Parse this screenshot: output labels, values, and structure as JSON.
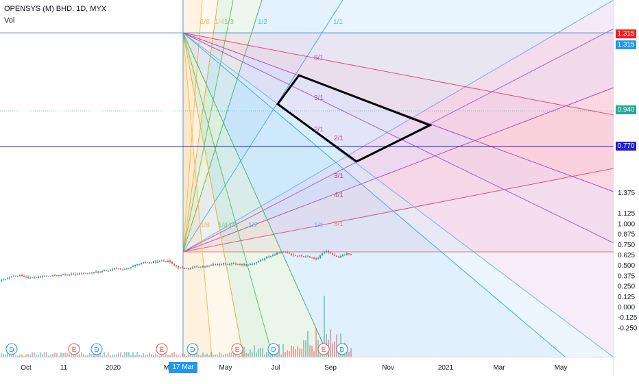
{
  "header": {
    "symbol_line": "OPENSYS (M) BHD, 1D, MYX",
    "indicator": "Vol"
  },
  "price_axis": {
    "ticks": [
      "1.375",
      "1.125",
      "1.000",
      "0.875",
      "0.750",
      "0.625",
      "0.500",
      "0.375",
      "0.250",
      "0.125",
      "0.000",
      "-0.125",
      "-0.250"
    ],
    "tick_values": [
      1.375,
      1.125,
      1.0,
      0.875,
      0.75,
      0.625,
      0.5,
      0.375,
      0.25,
      0.125,
      0.0,
      -0.125,
      -0.25
    ]
  },
  "price_labels": [
    {
      "text": "1.315",
      "color": "#ff1a1a",
      "value": 1.315
    },
    {
      "text": "1.315",
      "color": "#2196f3",
      "value": 1.315
    },
    {
      "text": "0.940",
      "color": "#26a69a",
      "value": 0.94
    },
    {
      "text": "0.770",
      "color": "#1f1fcc",
      "value": 0.77
    }
  ],
  "time_axis": {
    "labels": [
      "Oct",
      "11",
      "2020",
      "M",
      "May",
      "Jul",
      "Sep",
      "Nov",
      "2021",
      "Mar",
      "May"
    ],
    "selected_date": "17 Mar '20"
  },
  "gann_fan_upper": [
    "1/8",
    "1/4",
    "1/3",
    "1/2",
    "1/1"
  ],
  "gann_fan_upper_right": [
    "8/1",
    "3/1",
    "2/1",
    "2/1",
    "3/1",
    "4/1",
    "8/1"
  ],
  "gann_fan_lower": [
    "1/8",
    "1/4",
    "1/3",
    "1/2",
    "1/1"
  ],
  "events": [
    "D",
    "E",
    "D",
    "E",
    "D",
    "E",
    "D",
    "E",
    "D"
  ],
  "colors": {
    "up_candle": "#26a69a",
    "down_candle": "#ef5350",
    "accent": "#2196f3"
  }
}
